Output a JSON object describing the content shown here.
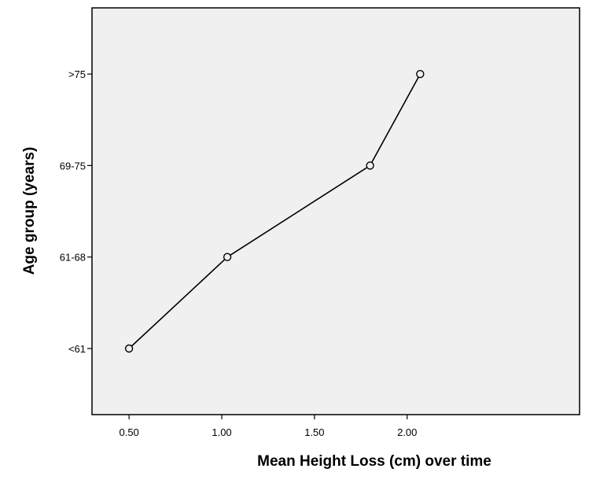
{
  "chart_data": {
    "type": "line",
    "title": "",
    "xlabel": "Mean Height Loss (cm) over time",
    "ylabel": "Age group (years)",
    "x_ticks": [
      "0.50",
      "1.00",
      "1.50",
      "2.00"
    ],
    "x_tick_values": [
      0.5,
      1.0,
      1.5,
      2.0
    ],
    "xlim": [
      0.3,
      2.93
    ],
    "y_categories": [
      "<61",
      "61-68",
      "69-75",
      ">75"
    ],
    "series": [
      {
        "points": [
          {
            "x": 0.5,
            "y": "<61"
          },
          {
            "x": 1.03,
            "y": "61-68"
          },
          {
            "x": 1.8,
            "y": "69-75"
          },
          {
            "x": 2.07,
            "y": ">75"
          }
        ]
      }
    ],
    "marker": "open-circle",
    "grid": false,
    "legend": "none",
    "colors": {
      "plot_background": "#f0f0f0",
      "page_background": "#ffffff",
      "line": "#000000",
      "axis": "#000000"
    }
  }
}
